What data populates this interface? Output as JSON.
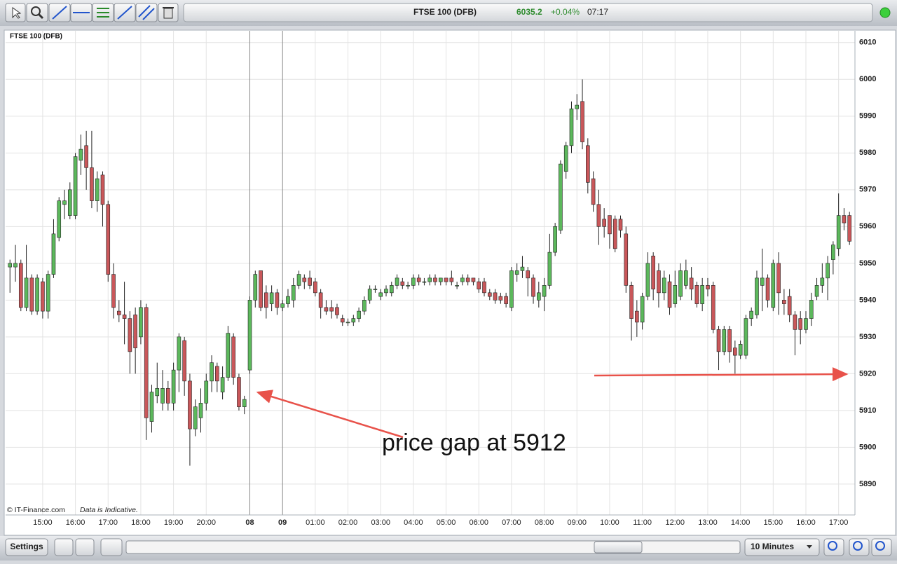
{
  "toolbar": {
    "instrument": "FTSE 100 (DFB)",
    "price": "6035.2",
    "change": "+0.04%",
    "time": "07:17"
  },
  "chart_data": {
    "type": "candlestick",
    "title": "FTSE 100 (DFB)",
    "annotation": "price gap at 5912",
    "up_color": "#5cb85c",
    "down_color": "#c9575a",
    "grid": true,
    "ylim": [
      5881.6,
      6013.2
    ],
    "yticks": [
      5890,
      5900,
      5910,
      5920,
      5930,
      5940,
      5950,
      5960,
      5970,
      5980,
      5990,
      6000,
      6010
    ],
    "xlim": [
      -0.8,
      155
    ],
    "xticks": [
      {
        "value": 6,
        "label": "15:00"
      },
      {
        "value": 12,
        "label": "16:00"
      },
      {
        "value": 18,
        "label": "17:00"
      },
      {
        "value": 24,
        "label": "18:00"
      },
      {
        "value": 30,
        "label": "19:00"
      },
      {
        "value": 36,
        "label": "20:00"
      },
      {
        "value": 44,
        "label": "08"
      },
      {
        "value": 50,
        "label": "09"
      },
      {
        "value": 56,
        "label": "01:00"
      },
      {
        "value": 62,
        "label": "02:00"
      },
      {
        "value": 68,
        "label": "03:00"
      },
      {
        "value": 74,
        "label": "04:00"
      },
      {
        "value": 80,
        "label": "05:00"
      },
      {
        "value": 86,
        "label": "06:00"
      },
      {
        "value": 92,
        "label": "07:00"
      },
      {
        "value": 98,
        "label": "08:00"
      },
      {
        "value": 104,
        "label": "09:00"
      },
      {
        "value": 110,
        "label": "10:00"
      },
      {
        "value": 116,
        "label": "11:00"
      },
      {
        "value": 122,
        "label": "12:00"
      },
      {
        "value": 128,
        "label": "13:00"
      },
      {
        "value": 134,
        "label": "14:00"
      },
      {
        "value": 140,
        "label": "15:00"
      },
      {
        "value": 146,
        "label": "16:00"
      },
      {
        "value": 152,
        "label": "17:00"
      }
    ],
    "candles": [
      [
        5949,
        5951,
        5942,
        5950
      ],
      [
        5949,
        5955,
        5945,
        5950
      ],
      [
        5950,
        5951,
        5937,
        5938
      ],
      [
        5938,
        5955,
        5937,
        5946
      ],
      [
        5946,
        5947,
        5936,
        5937
      ],
      [
        5937,
        5947,
        5936,
        5946
      ],
      [
        5945,
        5946,
        5935,
        5937
      ],
      [
        5937,
        5948,
        5935,
        5947
      ],
      [
        5947,
        5962,
        5946,
        5958
      ],
      [
        5957,
        5968,
        5956,
        5967
      ],
      [
        5966,
        5970,
        5962,
        5967
      ],
      [
        5963,
        5972,
        5962,
        5970
      ],
      [
        5963,
        5980,
        5962,
        5979
      ],
      [
        5978,
        5985,
        5974,
        5981
      ],
      [
        5982,
        5986,
        5970,
        5976
      ],
      [
        5976,
        5986,
        5965,
        5967
      ],
      [
        5967,
        5975,
        5964,
        5973
      ],
      [
        5974,
        5975,
        5960,
        5966
      ],
      [
        5966,
        5967,
        5945,
        5947
      ],
      [
        5947,
        5950,
        5935,
        5938
      ],
      [
        5937,
        5940,
        5934,
        5936
      ],
      [
        5936,
        5945,
        5928,
        5935
      ],
      [
        5935,
        5937,
        5920,
        5926
      ],
      [
        5936,
        5938,
        5920,
        5927
      ],
      [
        5930,
        5940,
        5928,
        5938
      ],
      [
        5938,
        5939,
        5902,
        5908
      ],
      [
        5907,
        5917,
        5904,
        5915
      ],
      [
        5914,
        5923,
        5912,
        5916
      ],
      [
        5912,
        5921,
        5910,
        5916
      ],
      [
        5916,
        5918,
        5910,
        5912
      ],
      [
        5912,
        5923,
        5910,
        5921
      ],
      [
        5921,
        5931,
        5915,
        5930
      ],
      [
        5929,
        5930,
        5914,
        5918
      ],
      [
        5918,
        5920,
        5895,
        5905
      ],
      [
        5905,
        5913,
        5903,
        5911
      ],
      [
        5908,
        5916,
        5904,
        5912
      ],
      [
        5912,
        5920,
        5910,
        5918
      ],
      [
        5918,
        5925,
        5915,
        5923
      ],
      [
        5922,
        5923,
        5915,
        5918
      ],
      [
        5915,
        5922,
        5913,
        5919
      ],
      [
        5919,
        5933,
        5918,
        5931
      ],
      [
        5930,
        5931,
        5917,
        5919
      ],
      [
        5919,
        5920,
        5910,
        5911
      ],
      [
        5911,
        5914,
        5909,
        5913
      ],
      [
        5921,
        5941,
        5920,
        5940
      ],
      [
        5940,
        5948,
        5938,
        5947
      ],
      [
        5948,
        5948,
        5937,
        5938
      ],
      [
        5942,
        5944,
        5935,
        5938
      ],
      [
        5939,
        5944,
        5937,
        5942
      ],
      [
        5942,
        5943,
        5936,
        5938
      ],
      [
        5938,
        5940,
        5937,
        5939
      ],
      [
        5939,
        5943,
        5938,
        5941
      ],
      [
        5940,
        5946,
        5938,
        5944
      ],
      [
        5944,
        5948,
        5943,
        5947
      ],
      [
        5946,
        5947,
        5943,
        5945
      ],
      [
        5946,
        5948,
        5943,
        5944
      ],
      [
        5945,
        5946,
        5941,
        5942
      ],
      [
        5942,
        5943,
        5935,
        5938
      ],
      [
        5938,
        5940,
        5936,
        5937
      ],
      [
        5938,
        5940,
        5935,
        5937
      ],
      [
        5938,
        5939,
        5935,
        5936
      ],
      [
        5935,
        5936,
        5933,
        5934
      ],
      [
        5934,
        5935,
        5933,
        5934
      ],
      [
        5934,
        5936,
        5933,
        5935
      ],
      [
        5935,
        5938,
        5934,
        5937
      ],
      [
        5937,
        5941,
        5936,
        5940
      ],
      [
        5940,
        5944,
        5939,
        5943
      ],
      [
        5943,
        5944,
        5942,
        5943
      ],
      [
        5941,
        5943,
        5940,
        5942
      ],
      [
        5942,
        5944,
        5941,
        5943
      ],
      [
        5942,
        5945,
        5941,
        5944
      ],
      [
        5944,
        5947,
        5943,
        5946
      ],
      [
        5945,
        5946,
        5943,
        5944
      ],
      [
        5944,
        5945,
        5943,
        5944
      ],
      [
        5944,
        5947,
        5943,
        5946
      ],
      [
        5946,
        5947,
        5944,
        5945
      ],
      [
        5945,
        5946,
        5944,
        5945
      ],
      [
        5945,
        5947,
        5944,
        5946
      ],
      [
        5946,
        5947,
        5944,
        5945
      ],
      [
        5945,
        5946,
        5944,
        5946
      ],
      [
        5946,
        5946,
        5944,
        5945
      ],
      [
        5946,
        5948,
        5944,
        5945
      ],
      [
        5944,
        5945,
        5943,
        5944
      ],
      [
        5945,
        5947,
        5944,
        5946
      ],
      [
        5946,
        5947,
        5944,
        5945
      ],
      [
        5946,
        5946,
        5944,
        5945
      ],
      [
        5945,
        5946,
        5942,
        5943
      ],
      [
        5945,
        5946,
        5941,
        5942
      ],
      [
        5942,
        5943,
        5940,
        5941
      ],
      [
        5942,
        5943,
        5939,
        5940
      ],
      [
        5941,
        5942,
        5939,
        5940
      ],
      [
        5941,
        5942,
        5938,
        5939
      ],
      [
        5938,
        5949,
        5937,
        5948
      ],
      [
        5947,
        5950,
        5945,
        5948
      ],
      [
        5948,
        5952,
        5946,
        5949
      ],
      [
        5948,
        5949,
        5941,
        5946
      ],
      [
        5946,
        5947,
        5939,
        5941
      ],
      [
        5940,
        5945,
        5938,
        5942
      ],
      [
        5941,
        5946,
        5937,
        5944
      ],
      [
        5944,
        5958,
        5943,
        5953
      ],
      [
        5953,
        5961,
        5952,
        5960
      ],
      [
        5959,
        5978,
        5958,
        5977
      ],
      [
        5975,
        5983,
        5973,
        5982
      ],
      [
        5982,
        5994,
        5980,
        5992
      ],
      [
        5992,
        5996,
        5989,
        5993
      ],
      [
        5994,
        6000,
        5981,
        5983
      ],
      [
        5982,
        5984,
        5969,
        5972
      ],
      [
        5973,
        5975,
        5964,
        5966
      ],
      [
        5966,
        5970,
        5955,
        5960
      ],
      [
        5962,
        5965,
        5957,
        5960
      ],
      [
        5963,
        5963,
        5954,
        5958
      ],
      [
        5962,
        5963,
        5953,
        5954
      ],
      [
        5962,
        5963,
        5957,
        5959
      ],
      [
        5958,
        5960,
        5942,
        5944
      ],
      [
        5944,
        5945,
        5929,
        5935
      ],
      [
        5937,
        5940,
        5930,
        5934
      ],
      [
        5934,
        5942,
        5932,
        5941
      ],
      [
        5941,
        5953,
        5940,
        5950
      ],
      [
        5952,
        5953,
        5940,
        5943
      ],
      [
        5948,
        5950,
        5938,
        5942
      ],
      [
        5942,
        5948,
        5940,
        5946
      ],
      [
        5945,
        5947,
        5936,
        5938
      ],
      [
        5939,
        5948,
        5938,
        5944
      ],
      [
        5941,
        5950,
        5940,
        5948
      ],
      [
        5944,
        5951,
        5943,
        5948
      ],
      [
        5946,
        5949,
        5940,
        5943
      ],
      [
        5944,
        5945,
        5938,
        5939
      ],
      [
        5939,
        5946,
        5937,
        5944
      ],
      [
        5944,
        5946,
        5941,
        5943
      ],
      [
        5944,
        5945,
        5931,
        5932
      ],
      [
        5932,
        5933,
        5921,
        5926
      ],
      [
        5926,
        5933,
        5925,
        5932
      ],
      [
        5932,
        5933,
        5923,
        5926
      ],
      [
        5927,
        5929,
        5920,
        5925
      ],
      [
        5925,
        5929,
        5924,
        5928
      ],
      [
        5925,
        5936,
        5924,
        5935
      ],
      [
        5935,
        5938,
        5933,
        5937
      ],
      [
        5936,
        5948,
        5935,
        5946
      ],
      [
        5944,
        5954,
        5937,
        5946
      ],
      [
        5946,
        5947,
        5938,
        5940
      ],
      [
        5938,
        5951,
        5937,
        5950
      ],
      [
        5950,
        5953,
        5936,
        5942
      ],
      [
        5940,
        5943,
        5936,
        5939
      ],
      [
        5941,
        5943,
        5934,
        5936
      ],
      [
        5936,
        5937,
        5925,
        5932
      ],
      [
        5935,
        5937,
        5928,
        5932
      ],
      [
        5932,
        5937,
        5931,
        5935
      ],
      [
        5935,
        5942,
        5933,
        5940
      ],
      [
        5941,
        5946,
        5940,
        5944
      ],
      [
        5944,
        5950,
        5942,
        5946
      ],
      [
        5946,
        5952,
        5940,
        5950
      ],
      [
        5951,
        5956,
        5947,
        5955
      ],
      [
        5954,
        5969,
        5952,
        5963
      ],
      [
        5963,
        5965,
        5959,
        5961
      ],
      [
        5963,
        5964,
        5955,
        5956
      ]
    ]
  },
  "footer": {
    "copyright": "© IT-Finance.com",
    "disclaimer": "Data is Indicative.",
    "settings": "Settings",
    "interval": "10 Minutes"
  }
}
